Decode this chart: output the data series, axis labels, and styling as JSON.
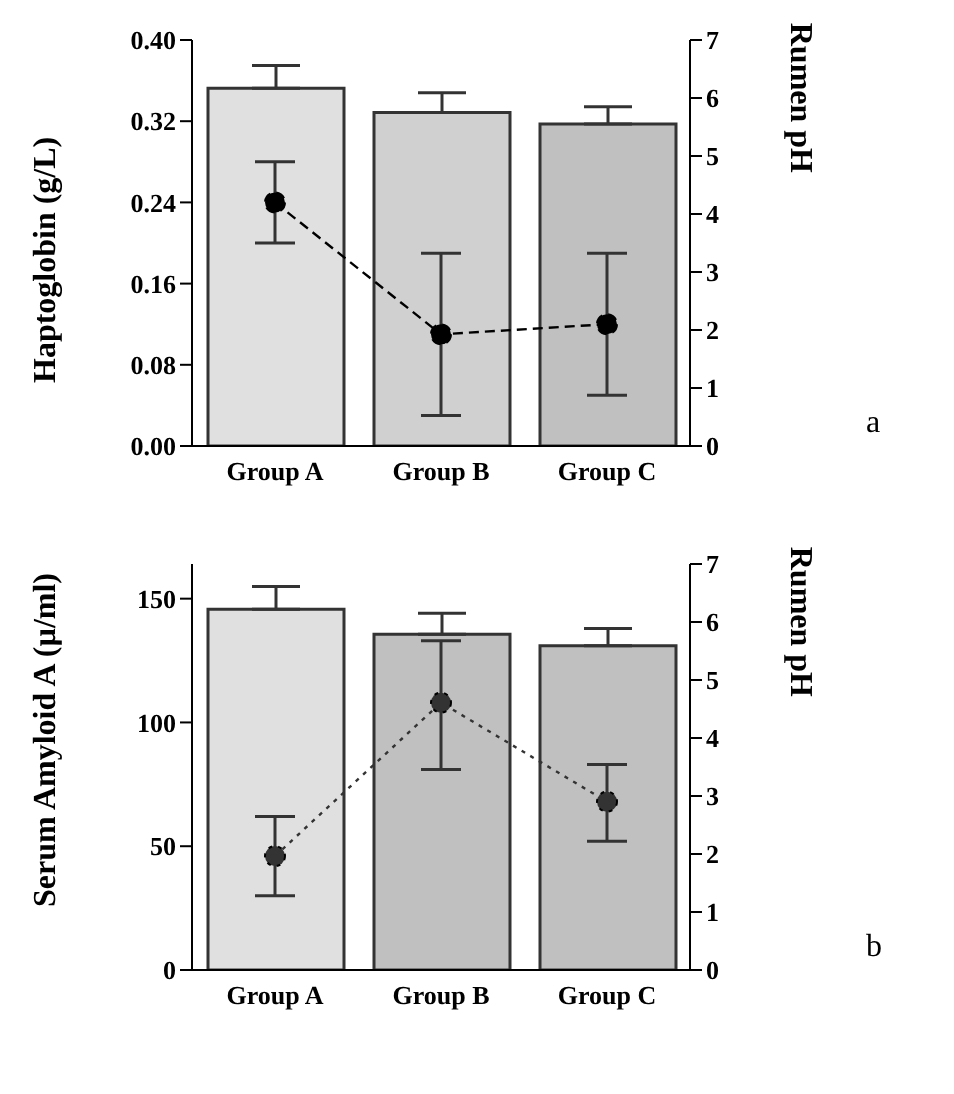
{
  "chart_data": [
    {
      "type": "bar",
      "ylabel": "Haptoglobin (g/L)",
      "y2label": "Rumen pH",
      "categories": [
        "Group A",
        "Group B",
        "Group C"
      ],
      "series": [
        {
          "axis": "y2",
          "colors": [
            "#e0e0e0",
            "#d0d0d0",
            "#c0c0c0"
          ],
          "values": [
            6.17,
            5.75,
            5.55
          ],
          "errors": [
            [
              6.17,
              6.56
            ],
            [
              5.75,
              6.09
            ],
            [
              5.55,
              5.85
            ]
          ]
        },
        {
          "type": "line",
          "axis": "y",
          "color": "#000000",
          "values": [
            0.24,
            0.11,
            0.12
          ],
          "errors": [
            [
              0.2,
              0.28
            ],
            [
              0.03,
              0.19
            ],
            [
              0.05,
              0.19
            ]
          ],
          "marker": "circle",
          "line_style": "dashed"
        }
      ],
      "ylim": [
        0,
        0.4
      ],
      "yticks": [
        {
          "value": 0,
          "label": "0.00"
        },
        {
          "value": 0.08,
          "label": "0.08"
        },
        {
          "value": 0.16,
          "label": "0.16"
        },
        {
          "value": 0.24,
          "label": "0.24"
        },
        {
          "value": 0.32,
          "label": "0.32"
        },
        {
          "value": 0.4,
          "label": "0.40"
        }
      ],
      "y2lim": [
        0,
        7
      ],
      "y2ticks": [
        0,
        1,
        2,
        3,
        4,
        5,
        6,
        7
      ],
      "grid": false,
      "legend": false,
      "annotations": [
        "a"
      ]
    },
    {
      "type": "bar",
      "ylabel": "Serum Amyloid A (µ/ml)",
      "y2label": "Rumen pH",
      "categories": [
        "Group A",
        "Group B",
        "Group C"
      ],
      "series": [
        {
          "axis": "y2",
          "colors": [
            "#e0e0e0",
            "#c0c0c0",
            "#c0c0c0"
          ],
          "values": [
            6.22,
            5.79,
            5.59
          ],
          "errors": [
            [
              6.22,
              6.61
            ],
            [
              5.79,
              6.15
            ],
            [
              5.59,
              5.89
            ]
          ]
        },
        {
          "type": "line",
          "axis": "y",
          "color": "#333333",
          "values": [
            46,
            108,
            68
          ],
          "errors": [
            [
              30,
              62
            ],
            [
              81,
              133
            ],
            [
              52,
              83
            ]
          ],
          "marker": "circle",
          "line_style": "dotted"
        }
      ],
      "ylim": [
        0,
        164
      ],
      "yticks": [
        0,
        50,
        100,
        150
      ],
      "y2lim": [
        0,
        7
      ],
      "y2ticks": [
        0,
        1,
        2,
        3,
        4,
        5,
        6,
        7
      ],
      "grid": false,
      "legend": false,
      "annotations": [
        "b"
      ]
    }
  ]
}
